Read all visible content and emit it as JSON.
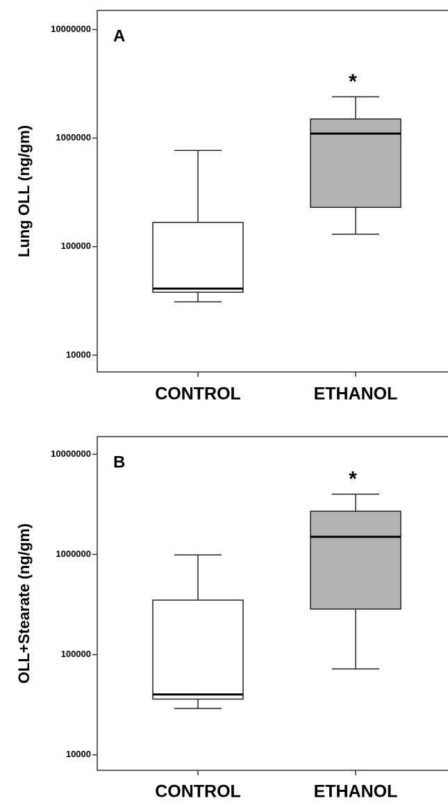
{
  "chart_data": [
    {
      "type": "box",
      "panel_label": "A",
      "y_label": "Lung OLL (ng/gm)",
      "categories": [
        "CONTROL",
        "ETHANOL"
      ],
      "significance": [
        null,
        "*"
      ],
      "colors": [
        "#ffffff",
        "#b3b3b3"
      ],
      "boxes": [
        {
          "min": 31000,
          "q1": 38000,
          "median": 41000,
          "q3": 167000,
          "max": 770000
        },
        {
          "min": 130000,
          "q1": 230000,
          "median": 1100000,
          "q3": 1500000,
          "max": 2400000
        }
      ],
      "log_scale": true,
      "ylim": [
        7000,
        15000000
      ],
      "yticks": [
        10000,
        100000,
        1000000,
        10000000
      ]
    },
    {
      "type": "box",
      "panel_label": "B",
      "y_label": "OLL+Stearate (ng/gm)",
      "categories": [
        "CONTROL",
        "ETHANOL"
      ],
      "significance": [
        null,
        "*"
      ],
      "colors": [
        "#ffffff",
        "#b3b3b3"
      ],
      "boxes": [
        {
          "min": 29000,
          "q1": 36000,
          "median": 40000,
          "q3": 350000,
          "max": 990000
        },
        {
          "min": 72000,
          "q1": 285000,
          "median": 1500000,
          "q3": 2700000,
          "max": 4000000
        }
      ],
      "log_scale": true,
      "ylim": [
        7000,
        15000000
      ],
      "yticks": [
        10000,
        100000,
        1000000,
        10000000
      ]
    }
  ]
}
